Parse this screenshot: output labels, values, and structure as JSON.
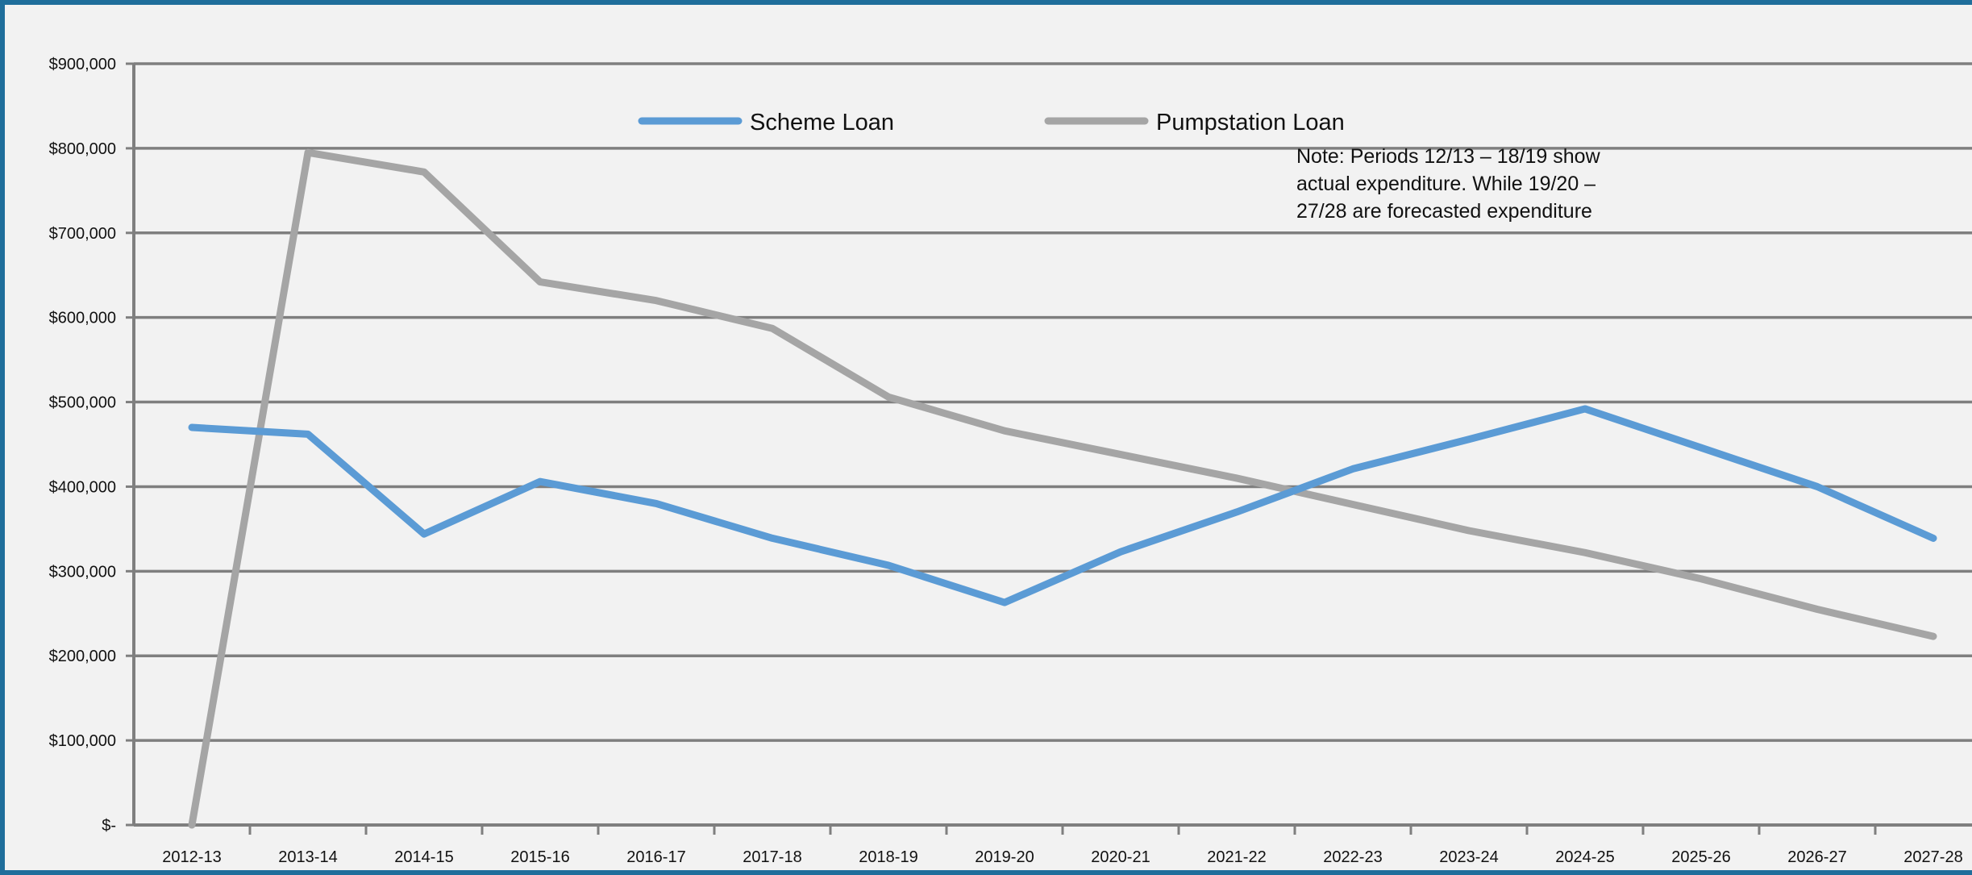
{
  "chart_data": {
    "type": "line",
    "title": "",
    "xlabel": "",
    "ylabel": "",
    "ylim": [
      0,
      900000
    ],
    "y_ticks": [
      0,
      100000,
      200000,
      300000,
      400000,
      500000,
      600000,
      700000,
      800000,
      900000
    ],
    "y_tick_labels": [
      "$-",
      "$100,000",
      "$200,000",
      "$300,000",
      "$400,000",
      "$500,000",
      "$600,000",
      "$700,000",
      "$800,000",
      "$900,000"
    ],
    "categories": [
      "2012-13",
      "2013-14",
      "2014-15",
      "2015-16",
      "2016-17",
      "2017-18",
      "2018-19",
      "2019-20",
      "2020-21",
      "2021-22",
      "2022-23",
      "2023-24",
      "2024-25",
      "2025-26",
      "2026-27",
      "2027-28"
    ],
    "series": [
      {
        "name": "Scheme Loan",
        "color": "#5b9bd5",
        "values": [
          470000,
          462000,
          344000,
          406000,
          380000,
          339000,
          307000,
          263000,
          323000,
          370000,
          421000,
          456000,
          492000,
          446000,
          400000,
          339000
        ]
      },
      {
        "name": "Pumpstation Loan",
        "color": "#a5a5a5",
        "values": [
          0,
          795000,
          772000,
          642000,
          620000,
          587000,
          506000,
          466000,
          438000,
          410000,
          379000,
          348000,
          322000,
          291000,
          255000,
          223000
        ]
      }
    ],
    "grid": true,
    "legend_position": "top-center",
    "annotation": {
      "lines": [
        "Note: Periods 12/13 – 18/19 show",
        "actual expenditure. While 19/20 –",
        "27/28 are forecasted  expenditure"
      ]
    }
  }
}
